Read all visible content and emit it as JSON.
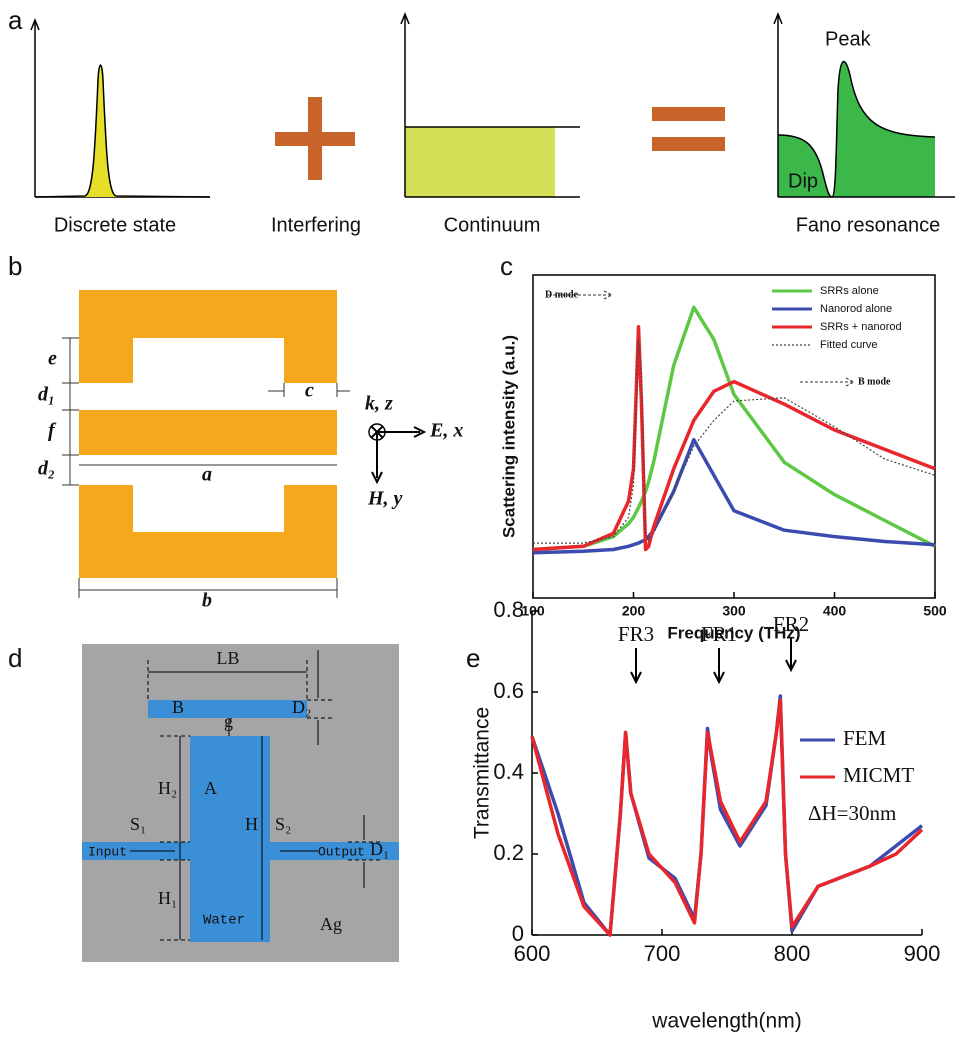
{
  "panels": {
    "a": {
      "label": "a",
      "captions": [
        "Discrete state",
        "Interfering",
        "Continuum",
        "Fano resonance"
      ],
      "peak": "Peak",
      "dip": "Dip"
    },
    "b": {
      "label": "b",
      "dims": {
        "e": "e",
        "d1": "d₁",
        "f": "f",
        "d2": "d₂",
        "a": "a",
        "b": "b",
        "c": "c"
      },
      "axes": {
        "k": "k, z",
        "E": "E, x",
        "H": "H, y"
      }
    },
    "c": {
      "label": "c"
    },
    "d": {
      "label": "d",
      "labels": {
        "LB": "LB",
        "B": "B",
        "D2": "D₂",
        "g": "g",
        "A": "A",
        "H2": "H₂",
        "H": "H",
        "S1": "S₁",
        "S2": "S₂",
        "D1": "D₁",
        "H1": "H₁",
        "input": "Input",
        "output": "Output",
        "water": "Water",
        "ag": "Ag"
      }
    },
    "e": {
      "label": "e"
    }
  },
  "chart_data": [
    {
      "type": "line",
      "xlabel": "Frequency (THz)",
      "ylabel": "Scattering intensity (a.u.)",
      "x": [
        100,
        150,
        180,
        195,
        200,
        205,
        208,
        212,
        215,
        220,
        240,
        260,
        280,
        300,
        350,
        400,
        450,
        500
      ],
      "xlim": [
        100,
        500
      ],
      "xticks": [
        100,
        200,
        300,
        400,
        500
      ],
      "ylim": [
        0,
        1
      ],
      "legend": "upper right",
      "annotations": [
        "D mode",
        "B mode"
      ],
      "series": [
        {
          "name": "SRRs alone",
          "color": "#5cc843",
          "style": "solid",
          "values": [
            0.15,
            0.16,
            0.19,
            0.23,
            0.25,
            0.28,
            0.3,
            0.33,
            0.36,
            0.42,
            0.72,
            0.9,
            0.8,
            0.63,
            0.42,
            0.32,
            0.24,
            0.16
          ]
        },
        {
          "name": "Nanorod alone",
          "color": "#3b4bb0",
          "style": "solid",
          "values": [
            0.14,
            0.145,
            0.15,
            0.16,
            0.165,
            0.17,
            0.175,
            0.18,
            0.19,
            0.21,
            0.33,
            0.49,
            0.38,
            0.27,
            0.21,
            0.19,
            0.175,
            0.165
          ]
        },
        {
          "name": "SRRs + nanorod",
          "color": "#e8262b",
          "style": "solid",
          "values": [
            0.15,
            0.16,
            0.2,
            0.3,
            0.4,
            0.84,
            0.6,
            0.15,
            0.16,
            0.22,
            0.4,
            0.55,
            0.64,
            0.67,
            0.6,
            0.52,
            0.46,
            0.4
          ]
        },
        {
          "name": "Fitted curve",
          "color": "#444444",
          "style": "dotted",
          "values": [
            0.17,
            0.17,
            0.19,
            0.25,
            0.35,
            0.8,
            0.7,
            0.2,
            0.18,
            0.2,
            0.33,
            0.47,
            0.55,
            0.61,
            0.62,
            0.53,
            0.43,
            0.38
          ]
        }
      ]
    },
    {
      "type": "line",
      "xlabel": "wavelength(nm)",
      "ylabel": "Transmittance",
      "x": [
        600,
        620,
        640,
        660,
        668,
        672,
        676,
        690,
        710,
        725,
        730,
        735,
        738,
        745,
        760,
        780,
        788,
        791,
        795,
        800,
        820,
        860,
        880,
        900
      ],
      "xlim": [
        600,
        900
      ],
      "xticks": [
        600,
        700,
        800,
        900
      ],
      "ylim": [
        0,
        0.8
      ],
      "yticks": [
        0,
        0.2,
        0.4,
        0.6,
        0.8
      ],
      "legend": "right",
      "annotations": [
        "FR3",
        "FR1",
        "FR2",
        "ΔH=30nm"
      ],
      "series": [
        {
          "name": "FEM",
          "color": "#3b4bb0",
          "style": "solid",
          "values": [
            0.49,
            0.3,
            0.08,
            0.0,
            0.3,
            0.5,
            0.35,
            0.19,
            0.14,
            0.04,
            0.2,
            0.51,
            0.44,
            0.31,
            0.22,
            0.32,
            0.5,
            0.59,
            0.2,
            0.01,
            0.12,
            0.17,
            0.22,
            0.27
          ]
        },
        {
          "name": "MICMT",
          "color": "#e8262b",
          "style": "solid",
          "values": [
            0.49,
            0.25,
            0.07,
            0.0,
            0.3,
            0.5,
            0.35,
            0.2,
            0.13,
            0.03,
            0.2,
            0.5,
            0.45,
            0.33,
            0.23,
            0.33,
            0.5,
            0.58,
            0.2,
            0.02,
            0.12,
            0.17,
            0.2,
            0.26
          ]
        }
      ]
    }
  ]
}
